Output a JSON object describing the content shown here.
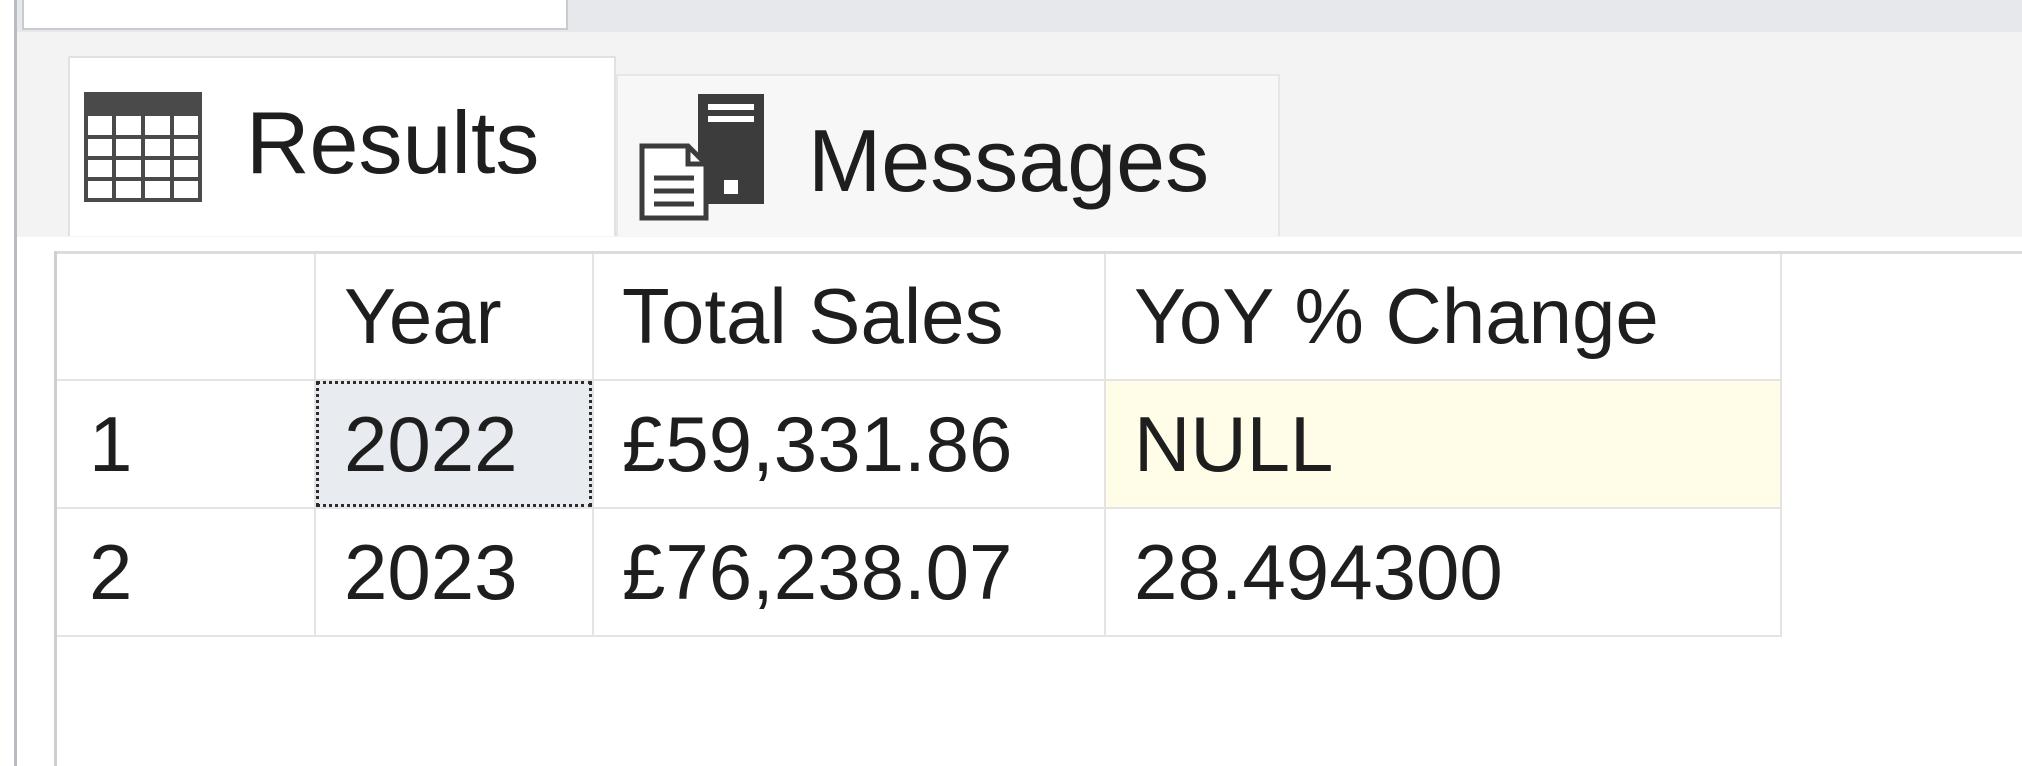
{
  "tabs": {
    "results_label": "Results",
    "messages_label": "Messages",
    "results_icon": "grid-icon",
    "messages_icon": "document-server-icon"
  },
  "grid": {
    "columns": [
      "",
      "Year",
      "Total Sales",
      "YoY % Change"
    ],
    "rows": [
      {
        "row_num": "1",
        "year": "2022",
        "total_sales": "£59,331.86",
        "yoy_change": "NULL"
      },
      {
        "row_num": "2",
        "year": "2023",
        "total_sales": "£76,238.07",
        "yoy_change": "28.494300"
      }
    ],
    "selected_cell": "rows.0.year"
  },
  "colors": {
    "selected_cell_bg": "#e8ebf0",
    "null_cell_bg": "#fffde8",
    "tab_strip_bg": "#f3f3f3"
  }
}
